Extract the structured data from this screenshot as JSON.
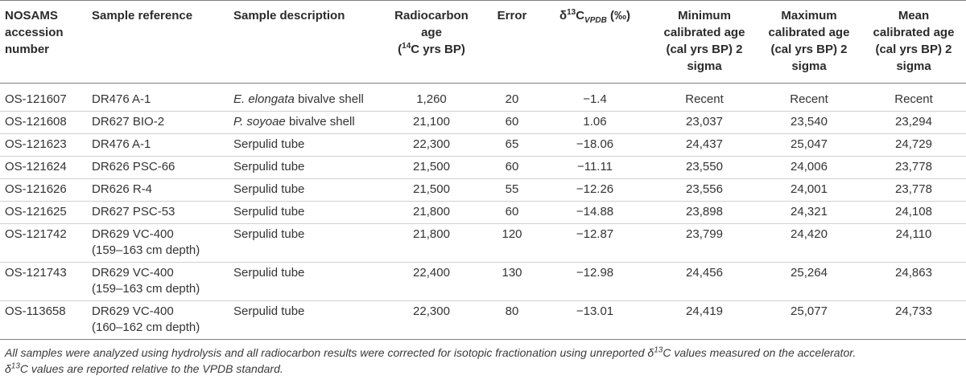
{
  "table": {
    "headers": {
      "accession_1": "NOSAMS",
      "accession_2": "accession",
      "accession_3": "number",
      "reference": "Sample reference",
      "description": "Sample description",
      "age_1": "Radiocarbon",
      "age_2": "age",
      "age_sup": "14",
      "age_3": "C yrs BP)",
      "age_open": "(",
      "error": "Error",
      "delta_prefix": "δ",
      "delta_sup": "13",
      "delta_c": "C",
      "delta_sub": "VPDB",
      "delta_unit": " (‰)",
      "min_1": "Minimum",
      "min_2": "calibrated age",
      "min_3": "(cal yrs BP) 2",
      "min_4": "sigma",
      "max_1": "Maximum",
      "max_2": "calibrated age",
      "max_3": "(cal yrs BP) 2",
      "max_4": "sigma",
      "mean_1": "Mean",
      "mean_2": "calibrated age",
      "mean_3": "(cal yrs BP) 2",
      "mean_4": "sigma"
    },
    "rows": [
      {
        "accession": "OS-121607",
        "reference": "DR476 A-1",
        "reference_2": "",
        "species": "E. elongata",
        "description": " bivalve shell",
        "age": "1,260",
        "error": "20",
        "delta": "−1.4",
        "min": "Recent",
        "max": "Recent",
        "mean": "Recent"
      },
      {
        "accession": "OS-121608",
        "reference": "DR627 BIO-2",
        "reference_2": "",
        "species": "P. soyoae",
        "description": " bivalve shell",
        "age": "21,100",
        "error": "60",
        "delta": "1.06",
        "min": "23,037",
        "max": "23,540",
        "mean": "23,294"
      },
      {
        "accession": "OS-121623",
        "reference": "DR476 A-1",
        "reference_2": "",
        "species": "",
        "description": "Serpulid tube",
        "age": "22,300",
        "error": "65",
        "delta": "−18.06",
        "min": "24,437",
        "max": "25,047",
        "mean": "24,729"
      },
      {
        "accession": "OS-121624",
        "reference": "DR626 PSC-66",
        "reference_2": "",
        "species": "",
        "description": "Serpulid tube",
        "age": "21,500",
        "error": "60",
        "delta": "−11.11",
        "min": "23,550",
        "max": "24,006",
        "mean": "23,778"
      },
      {
        "accession": "OS-121626",
        "reference": "DR626 R-4",
        "reference_2": "",
        "species": "",
        "description": "Serpulid tube",
        "age": "21,500",
        "error": "55",
        "delta": "−12.26",
        "min": "23,556",
        "max": "24,001",
        "mean": "23,778"
      },
      {
        "accession": "OS-121625",
        "reference": "DR627 PSC-53",
        "reference_2": "",
        "species": "",
        "description": "Serpulid tube",
        "age": "21,800",
        "error": "60",
        "delta": "−14.88",
        "min": "23,898",
        "max": "24,321",
        "mean": "24,108"
      },
      {
        "accession": "OS-121742",
        "reference": "DR629 VC-400",
        "reference_2": "(159–163 cm depth)",
        "species": "",
        "description": "Serpulid tube",
        "age": "21,800",
        "error": "120",
        "delta": "−12.87",
        "min": "23,799",
        "max": "24,420",
        "mean": "24,110"
      },
      {
        "accession": "OS-121743",
        "reference": "DR629 VC-400",
        "reference_2": "(159–163 cm depth)",
        "species": "",
        "description": "Serpulid tube",
        "age": "22,400",
        "error": "130",
        "delta": "−12.98",
        "min": "24,456",
        "max": "25,264",
        "mean": "24,863"
      },
      {
        "accession": "OS-113658",
        "reference": "DR629 VC-400",
        "reference_2": "(160–162 cm depth)",
        "species": "",
        "description": "Serpulid tube",
        "age": "22,300",
        "error": "80",
        "delta": "−13.01",
        "min": "24,419",
        "max": "25,077",
        "mean": "24,733"
      }
    ]
  },
  "footnote": {
    "line1_a": "All samples were analyzed using hydrolysis and all radiocarbon results were corrected for isotopic fractionation using unreported δ",
    "line1_sup": "13",
    "line1_b": "C values measured on the accelerator.",
    "line2_a": "δ",
    "line2_sup": "13",
    "line2_b": "C values are reported relative to the VPDB standard."
  }
}
